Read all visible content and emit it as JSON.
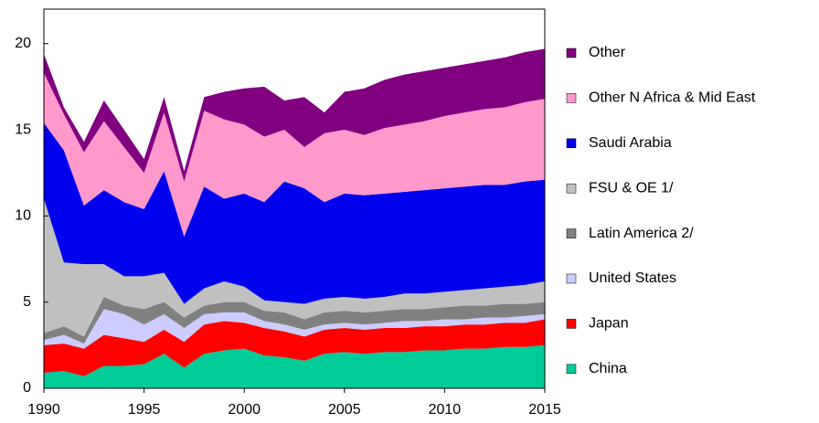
{
  "chart_data": {
    "type": "stacked-area",
    "x": [
      1990,
      1991,
      1992,
      1993,
      1994,
      1995,
      1996,
      1997,
      1998,
      1999,
      2000,
      2001,
      2002,
      2003,
      2004,
      2005,
      2006,
      2007,
      2008,
      2009,
      2010,
      2011,
      2012,
      2013,
      2014,
      2015
    ],
    "xlim": [
      1990,
      2015
    ],
    "xticks": [
      1990,
      1995,
      2000,
      2005,
      2010,
      2015
    ],
    "ylim": [
      0,
      22
    ],
    "yticks": [
      0,
      5,
      10,
      15,
      20
    ],
    "series": [
      {
        "name": "China",
        "color": "#00cc99",
        "values": [
          0.9,
          1.0,
          0.7,
          1.3,
          1.3,
          1.4,
          2.0,
          1.2,
          2.0,
          2.2,
          2.3,
          1.9,
          1.8,
          1.6,
          2.0,
          2.1,
          2.0,
          2.1,
          2.1,
          2.2,
          2.2,
          2.3,
          2.3,
          2.4,
          2.4,
          2.5
        ]
      },
      {
        "name": "Japan",
        "color": "#ff0000",
        "values": [
          1.6,
          1.6,
          1.6,
          1.8,
          1.6,
          1.3,
          1.4,
          1.5,
          1.7,
          1.7,
          1.5,
          1.6,
          1.5,
          1.4,
          1.4,
          1.4,
          1.4,
          1.4,
          1.4,
          1.4,
          1.4,
          1.4,
          1.4,
          1.4,
          1.4,
          1.5
        ]
      },
      {
        "name": "United States",
        "color": "#ccccff",
        "values": [
          0.3,
          0.5,
          0.3,
          1.5,
          1.4,
          1.0,
          0.9,
          0.8,
          0.6,
          0.5,
          0.6,
          0.4,
          0.4,
          0.4,
          0.3,
          0.3,
          0.3,
          0.3,
          0.4,
          0.3,
          0.4,
          0.3,
          0.4,
          0.3,
          0.4,
          0.3
        ]
      },
      {
        "name": "Latin America  2/",
        "color": "#808080",
        "values": [
          0.4,
          0.5,
          0.4,
          0.7,
          0.5,
          0.9,
          0.7,
          0.6,
          0.5,
          0.6,
          0.6,
          0.6,
          0.7,
          0.6,
          0.7,
          0.7,
          0.7,
          0.7,
          0.7,
          0.7,
          0.7,
          0.8,
          0.7,
          0.8,
          0.7,
          0.7
        ]
      },
      {
        "name": "FSU & OE 1/",
        "color": "#c0c0c0",
        "values": [
          7.8,
          3.7,
          4.2,
          1.9,
          1.7,
          1.9,
          1.7,
          0.8,
          1.0,
          1.2,
          0.9,
          0.6,
          0.6,
          0.9,
          0.8,
          0.8,
          0.8,
          0.8,
          0.9,
          0.9,
          0.9,
          0.9,
          1.0,
          1.0,
          1.1,
          1.2
        ]
      },
      {
        "name": "Saudi Arabia",
        "color": "#0000ee",
        "values": [
          4.4,
          6.5,
          3.4,
          4.3,
          4.3,
          3.9,
          5.9,
          3.9,
          5.9,
          4.8,
          5.4,
          5.7,
          7.0,
          6.7,
          5.6,
          6.0,
          6.0,
          6.0,
          5.9,
          6.0,
          6.0,
          6.0,
          6.0,
          5.9,
          6.0,
          5.9
        ]
      },
      {
        "name": "Other N Africa & Mid East",
        "color": "#ff99cc",
        "values": [
          2.9,
          2.1,
          3.1,
          4.0,
          3.2,
          2.1,
          3.4,
          3.2,
          4.4,
          4.6,
          4.0,
          3.8,
          3.0,
          2.4,
          4.0,
          3.7,
          3.5,
          3.8,
          3.9,
          4.0,
          4.2,
          4.3,
          4.4,
          4.5,
          4.6,
          4.7
        ]
      },
      {
        "name": "Other",
        "color": "#800080",
        "values": [
          1.1,
          0.4,
          0.6,
          1.2,
          1.0,
          0.8,
          0.9,
          0.6,
          0.8,
          1.6,
          2.1,
          2.9,
          1.7,
          2.9,
          1.2,
          2.2,
          2.7,
          2.8,
          2.9,
          2.9,
          2.8,
          2.8,
          2.8,
          2.9,
          2.9,
          2.9
        ]
      }
    ],
    "legend": "right"
  }
}
